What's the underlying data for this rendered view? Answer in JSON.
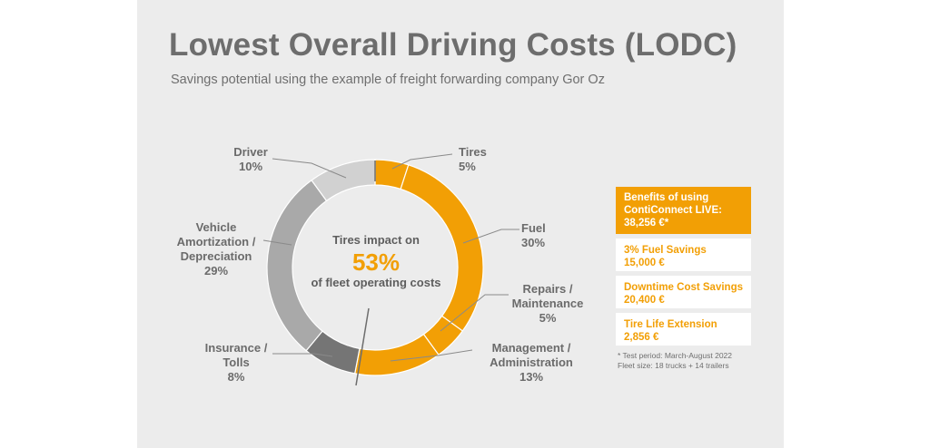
{
  "title": "Lowest Overall Driving Costs (LODC)",
  "subtitle": "Savings potential using the example of freight forwarding company Gor Oz",
  "chart_data": {
    "type": "pie",
    "title": "Lowest Overall Driving Costs (LODC)",
    "slices": [
      {
        "label": "Tires",
        "value": 5,
        "color": "#f29f05"
      },
      {
        "label": "Fuel",
        "value": 30,
        "color": "#f29f05"
      },
      {
        "label": "Repairs / Maintenance",
        "value": 5,
        "color": "#f29f05"
      },
      {
        "label": "Management / Administration",
        "value": 13,
        "color": "#f29f05"
      },
      {
        "label": "Insurance / Tolls",
        "value": 8,
        "color": "#757575"
      },
      {
        "label": "Vehicle Amortization / Depreciation",
        "value": 29,
        "color": "#a9a9a9"
      },
      {
        "label": "Driver",
        "value": 10,
        "color": "#d1d1d1"
      }
    ],
    "center": {
      "line1": "Tires impact on",
      "value": "53%",
      "line2": "of fleet operating",
      "line3": "costs"
    }
  },
  "labels": {
    "tires": {
      "name": "Tires",
      "pct": "5%"
    },
    "fuel": {
      "name": "Fuel",
      "pct": "30%"
    },
    "repairs": {
      "name1": "Repairs /",
      "name2": "Maintenance",
      "pct": "5%"
    },
    "management": {
      "name1": "Management /",
      "name2": "Administration",
      "pct": "13%"
    },
    "insurance": {
      "name1": "Insurance /",
      "name2": "Tolls",
      "pct": "8%"
    },
    "vehicle": {
      "name1": "Vehicle",
      "name2": "Amortization /",
      "name3": "Depreciation",
      "pct": "29%"
    },
    "driver": {
      "name": "Driver",
      "pct": "10%"
    }
  },
  "benefits": {
    "header": {
      "line1": "Benefits of using",
      "line2": "ContiConnect LIVE:",
      "line3": "38,256 €*"
    },
    "items": [
      {
        "name": "3% Fuel Savings",
        "value": "15,000 €"
      },
      {
        "name": "Downtime Cost Savings",
        "value": "20,400 €"
      },
      {
        "name": "Tire Life Extension",
        "value": "2,856 €"
      }
    ],
    "footnote": {
      "line1": "* Test period: March-August 2022",
      "line2": "Fleet size: 18 trucks + 14 trailers"
    }
  },
  "colors": {
    "accent": "#f29f05",
    "title_gray": "#6d6d6d",
    "panel_bg": "#ececec"
  }
}
